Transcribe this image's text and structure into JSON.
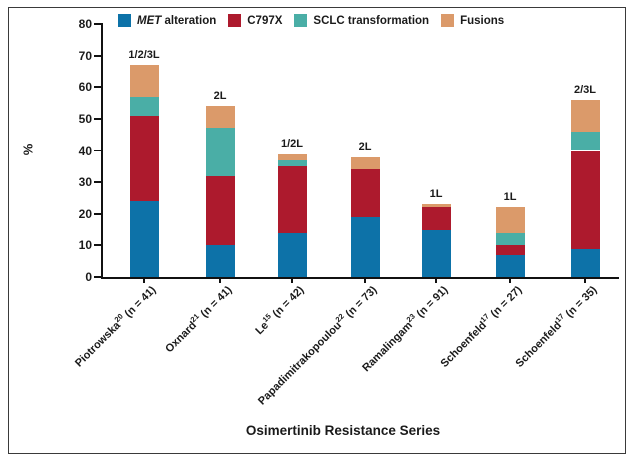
{
  "chart_data": {
    "type": "bar",
    "stacked": true,
    "title": "",
    "xlabel": "Osimertinib Resistance Series",
    "ylabel": "%",
    "ylim": [
      0,
      80
    ],
    "yticks": [
      0,
      10,
      20,
      30,
      40,
      50,
      60,
      70,
      80
    ],
    "grid": false,
    "legend_position": "top-inside",
    "legend": [
      {
        "label_italic": "MET",
        "label_rest": " alteration",
        "color": "#0D72A8"
      },
      {
        "label": "C797X",
        "color": "#AD1A2D"
      },
      {
        "label": "SCLC transformation",
        "color": "#4AAEA6"
      },
      {
        "label": "Fusions",
        "color": "#DB9A6A"
      }
    ],
    "series": [
      {
        "name": "MET alteration",
        "color": "#0D72A8",
        "values": [
          24,
          10,
          14,
          19,
          15,
          7,
          9
        ]
      },
      {
        "name": "C797X",
        "color": "#AD1A2D",
        "values": [
          27,
          22,
          21,
          15,
          7,
          3,
          31
        ]
      },
      {
        "name": "SCLC transformation",
        "color": "#4AAEA6",
        "values": [
          6,
          15,
          2,
          0,
          0,
          4,
          6
        ]
      },
      {
        "name": "Fusions",
        "color": "#DB9A6A",
        "values": [
          10,
          7,
          2,
          4,
          1,
          8,
          10
        ]
      }
    ],
    "categories": [
      {
        "author": "Piotrowska",
        "ref": "20",
        "n_label": "(n = 41)",
        "line_label": "1/2/3L",
        "total": 67
      },
      {
        "author": "Oxnard",
        "ref": "21",
        "n_label": "(n = 41)",
        "line_label": "2L",
        "total": 54
      },
      {
        "author": "Le",
        "ref": "15",
        "n_label": "(n = 42)",
        "line_label": "1/2L",
        "total": 39
      },
      {
        "author": "Papadimitrakopoulou",
        "ref": "22",
        "n_label": "(n = 73)",
        "line_label": "2L",
        "total": 38
      },
      {
        "author": "Ramalingam",
        "ref": "23",
        "n_label": "(n = 91)",
        "line_label": "1L",
        "total": 23
      },
      {
        "author": "Schoenfeld",
        "ref": "17",
        "n_label": "(n = 27)",
        "line_label": "1L",
        "total": 22
      },
      {
        "author": "Schoenfeld",
        "ref": "17",
        "n_label": "(n = 35)",
        "line_label": "2/3L",
        "total": 56
      }
    ]
  }
}
